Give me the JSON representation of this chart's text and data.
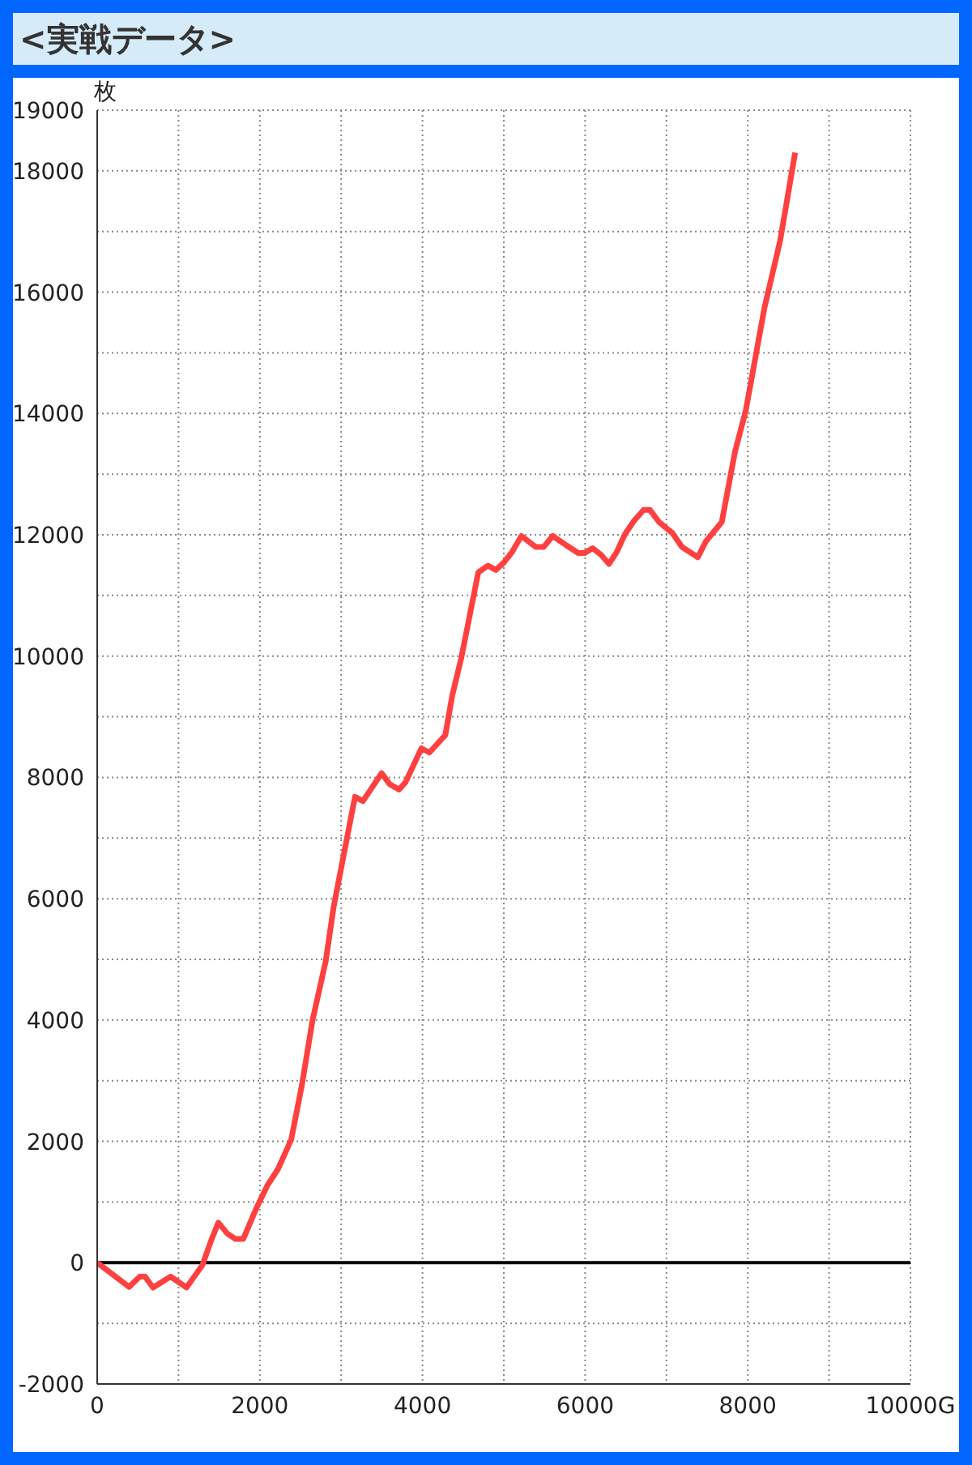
{
  "chart_data": {
    "type": "line",
    "title": "<実戦データ>",
    "ylabel": "枚",
    "x": [
      0,
      392,
      523,
      588,
      686,
      902,
      1098,
      1294,
      1405,
      1490,
      1600,
      1700,
      1796,
      1961,
      2092,
      2222,
      2386,
      2516,
      2647,
      2810,
      2908,
      3170,
      3268,
      3497,
      3595,
      3712,
      3791,
      3987,
      4085,
      4281,
      4366,
      4477,
      4686,
      4804,
      4902,
      5000,
      5098,
      5216,
      5392,
      5490,
      5601,
      5765,
      5915,
      5994,
      6092,
      6196,
      6294,
      6386,
      6490,
      6601,
      6719,
      6797,
      6908,
      7072,
      7190,
      7386,
      7484,
      7680,
      7843,
      7974,
      8203,
      8398,
      8582
    ],
    "series": [
      {
        "color": "#ff4040",
        "values": [
          0,
          -400,
          -230,
          -230,
          -410,
          -230,
          -410,
          -40,
          380,
          660,
          480,
          390,
          390,
          910,
          1270,
          1540,
          2030,
          2920,
          3990,
          4970,
          5870,
          7680,
          7610,
          8070,
          7890,
          7800,
          7920,
          8480,
          8410,
          8700,
          9350,
          9970,
          11380,
          11490,
          11420,
          11540,
          11710,
          11980,
          11800,
          11800,
          11980,
          11830,
          11700,
          11700,
          11780,
          11670,
          11520,
          11710,
          12010,
          12230,
          12410,
          12410,
          12210,
          12030,
          11800,
          11630,
          11890,
          12210,
          13370,
          14040,
          15730,
          16850,
          18300
        ]
      }
    ],
    "xlim": [
      0,
      10000
    ],
    "xticks": [
      0,
      {
        "value": 1000,
        "label": null
      },
      2000,
      {
        "value": 3000,
        "label": null
      },
      4000,
      {
        "value": 5000,
        "label": null
      },
      6000,
      {
        "value": 7000,
        "label": null
      },
      8000,
      {
        "value": 9000,
        "label": null
      },
      {
        "value": 10000,
        "label": "10000G"
      }
    ],
    "ylim": [
      -2000,
      19000
    ],
    "yticks": [
      -2000,
      {
        "value": -1000,
        "label": null
      },
      0,
      {
        "value": 1000,
        "label": null
      },
      2000,
      {
        "value": 3000,
        "label": null
      },
      4000,
      {
        "value": 5000,
        "label": null
      },
      6000,
      {
        "value": 7000,
        "label": null
      },
      8000,
      {
        "value": 9000,
        "label": null
      },
      10000,
      {
        "value": 11000,
        "label": null
      },
      12000,
      {
        "value": 13000,
        "label": null
      },
      14000,
      {
        "value": 15000,
        "label": null
      },
      16000,
      {
        "value": 17000,
        "label": null
      },
      18000,
      19000
    ],
    "ref_lines": [
      {
        "axis": "y",
        "value": 0,
        "color": "#000000"
      }
    ],
    "grid": true,
    "marker": "none",
    "line_style": "solid"
  }
}
